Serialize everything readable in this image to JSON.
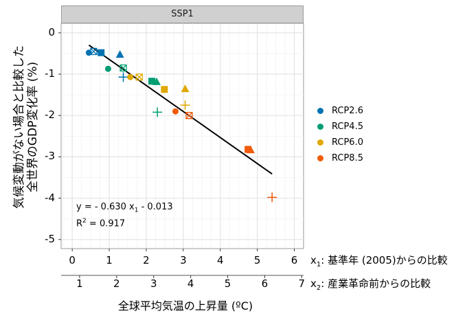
{
  "chart_data": {
    "type": "scatter",
    "panel_title": "SSP1",
    "ylabel_line1": "気候変動がない場合と比較した",
    "ylabel_line2": "全世界のGDP変化率 (%)",
    "xlabel": "全球平均気温の上昇量 (ºC)",
    "x1_axis_label_prefix": "x",
    "x1_axis_label_sub": "1",
    "x1_axis_label_text": ": 基準年 (2005)からの比較",
    "x2_axis_label_prefix": "x",
    "x2_axis_label_sub": "2",
    "x2_axis_label_text": ": 産業革命前からの比較",
    "x1_ticks": [
      "0",
      "1",
      "2",
      "3",
      "4",
      "5",
      "6"
    ],
    "x2_ticks": [
      "1",
      "2",
      "3",
      "4",
      "5",
      "6",
      "7"
    ],
    "y_ticks": [
      "0",
      "-1",
      "-2",
      "-3",
      "-4",
      "-5"
    ],
    "xlim": [
      -0.3,
      6.25
    ],
    "ylim": [
      -5.22,
      0.23
    ],
    "grid": true,
    "legend_position": "right",
    "regression": {
      "slope": -0.63,
      "intercept": -0.013,
      "x_range": [
        0.45,
        5.4
      ],
      "equation_parts": [
        "y = - 0.630 x",
        "1",
        " - 0.013"
      ],
      "r2_parts": [
        "R",
        "2",
        " = 0.917"
      ]
    },
    "series": [
      {
        "name": "RCP2.6",
        "color": "#0072B2",
        "points": [
          {
            "x": 0.45,
            "y": -0.48,
            "shape": "circle"
          },
          {
            "x": 0.58,
            "y": -0.45,
            "shape": "square-cross"
          },
          {
            "x": 0.78,
            "y": -0.48,
            "shape": "square"
          },
          {
            "x": 1.29,
            "y": -0.52,
            "shape": "triangle"
          },
          {
            "x": 1.38,
            "y": -1.07,
            "shape": "plus"
          }
        ]
      },
      {
        "name": "RCP4.5",
        "color": "#009E73",
        "points": [
          {
            "x": 0.97,
            "y": -0.87,
            "shape": "circle"
          },
          {
            "x": 1.38,
            "y": -0.85,
            "shape": "square-cross"
          },
          {
            "x": 2.15,
            "y": -1.17,
            "shape": "square"
          },
          {
            "x": 2.28,
            "y": -1.18,
            "shape": "triangle"
          },
          {
            "x": 2.3,
            "y": -1.92,
            "shape": "plus"
          }
        ]
      },
      {
        "name": "RCP6.0",
        "color": "#E0A800",
        "points": [
          {
            "x": 1.57,
            "y": -1.07,
            "shape": "circle"
          },
          {
            "x": 1.81,
            "y": -1.07,
            "shape": "square-cross"
          },
          {
            "x": 2.49,
            "y": -1.37,
            "shape": "square"
          },
          {
            "x": 3.05,
            "y": -1.35,
            "shape": "triangle"
          },
          {
            "x": 3.05,
            "y": -1.75,
            "shape": "plus"
          }
        ]
      },
      {
        "name": "RCP8.5",
        "color": "#F05A0A",
        "points": [
          {
            "x": 2.79,
            "y": -1.9,
            "shape": "circle"
          },
          {
            "x": 3.16,
            "y": -2.0,
            "shape": "square-cross"
          },
          {
            "x": 4.75,
            "y": -2.82,
            "shape": "square"
          },
          {
            "x": 4.82,
            "y": -2.83,
            "shape": "triangle"
          },
          {
            "x": 5.4,
            "y": -3.98,
            "shape": "plus"
          }
        ]
      }
    ]
  }
}
